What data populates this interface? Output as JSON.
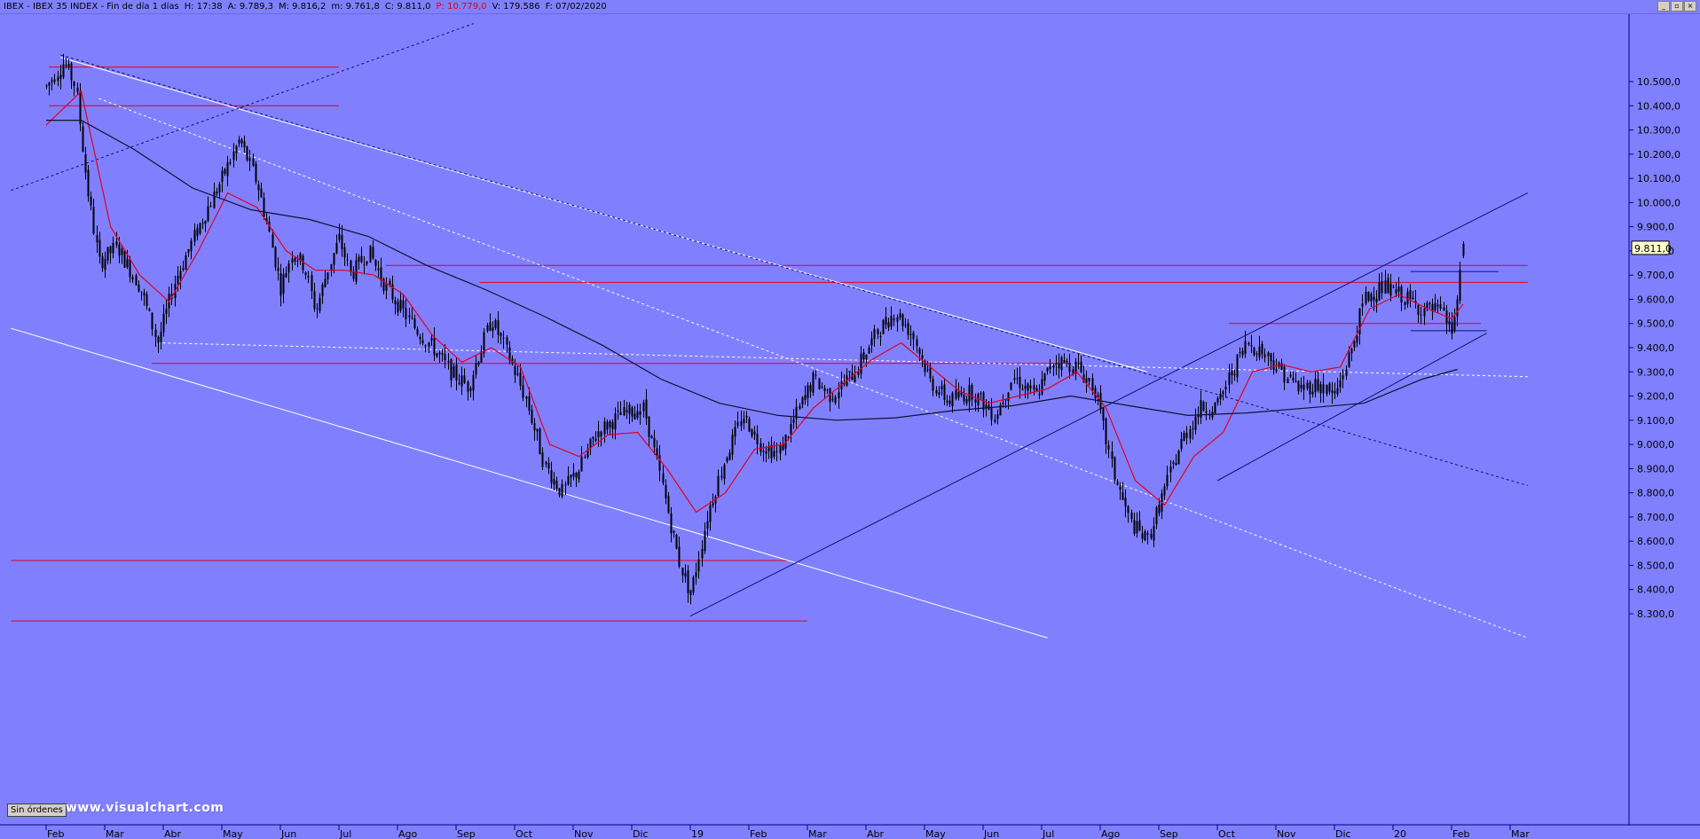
{
  "window": {
    "title_fields": [
      {
        "text": "IBEX - IBEX 35 INDEX - Fin de día 1 días",
        "color": "#000000"
      },
      {
        "text": "H: 17:38",
        "color": "#000000"
      },
      {
        "text": "A: 9.789,3",
        "color": "#000000"
      },
      {
        "text": "M: 9.816,2",
        "color": "#000000"
      },
      {
        "text": "m: 9.761,8",
        "color": "#000000"
      },
      {
        "text": "C: 9.811,0",
        "color": "#000000"
      },
      {
        "text": "P: 10.779,0",
        "color": "#e00000"
      },
      {
        "text": "V: 179.586",
        "color": "#000000"
      },
      {
        "text": "F: 07/02/2020",
        "color": "#000000"
      }
    ],
    "buttons": [
      "minimize-icon",
      "maximize-icon",
      "close-icon"
    ]
  },
  "footer": {
    "orders_button": "Sin órdenes",
    "watermark": "www.visualchart.com"
  },
  "chart_data": {
    "type": "candlestick",
    "instrument": "IBEX 35 INDEX",
    "last_price_label": "9.811,0",
    "y_ticks": [
      "10.500,0",
      "10.400,0",
      "10.300,0",
      "10.200,0",
      "10.100,0",
      "10.000,0",
      "9.900,0",
      "9.800,0",
      "9.700,0",
      "9.600,0",
      "9.500,0",
      "9.400,0",
      "9.300,0",
      "9.200,0",
      "9.100,0",
      "9.000,0",
      "8.900,0",
      "8.800,0",
      "8.700,0",
      "8.600,0",
      "8.500,0",
      "8.400,0",
      "8.300,0"
    ],
    "y_tick_values": [
      10500,
      10400,
      10300,
      10200,
      10100,
      10000,
      9900,
      9800,
      9700,
      9600,
      9500,
      9400,
      9300,
      9200,
      9100,
      9000,
      8900,
      8800,
      8700,
      8600,
      8500,
      8400,
      8300
    ],
    "x_labels": [
      "Feb",
      "Mar",
      "Abr",
      "May",
      "Jun",
      "Jul",
      "Ago",
      "Sep",
      "Oct",
      "Nov",
      "Dic",
      "19",
      "Feb",
      "Mar",
      "Abr",
      "May",
      "Jun",
      "Jul",
      "Ago",
      "Sep",
      "Oct",
      "Nov",
      "Dic",
      "20",
      "Feb",
      "Mar"
    ],
    "x_label_index": [
      0,
      1,
      2,
      3,
      4,
      5,
      6,
      7,
      8,
      9,
      10,
      11,
      12,
      13,
      14,
      15,
      16,
      17,
      18,
      19,
      20,
      21,
      22,
      23,
      24,
      25
    ],
    "price_path": [
      [
        0,
        10480
      ],
      [
        0.3,
        10580
      ],
      [
        0.5,
        10480
      ],
      [
        0.7,
        10060
      ],
      [
        0.9,
        9750
      ],
      [
        1.2,
        9820
      ],
      [
        1.6,
        9650
      ],
      [
        1.9,
        9420
      ],
      [
        2.2,
        9680
      ],
      [
        2.6,
        9900
      ],
      [
        3.0,
        10100
      ],
      [
        3.3,
        10260
      ],
      [
        3.6,
        10080
      ],
      [
        3.8,
        9880
      ],
      [
        4.0,
        9650
      ],
      [
        4.2,
        9800
      ],
      [
        4.4,
        9740
      ],
      [
        4.6,
        9550
      ],
      [
        4.8,
        9720
      ],
      [
        5.0,
        9850
      ],
      [
        5.2,
        9700
      ],
      [
        5.5,
        9800
      ],
      [
        5.8,
        9650
      ],
      [
        6.0,
        9580
      ],
      [
        6.3,
        9480
      ],
      [
        6.6,
        9400
      ],
      [
        6.9,
        9300
      ],
      [
        7.2,
        9240
      ],
      [
        7.6,
        9520
      ],
      [
        7.9,
        9360
      ],
      [
        8.2,
        9180
      ],
      [
        8.5,
        8920
      ],
      [
        8.8,
        8800
      ],
      [
        9.1,
        8900
      ],
      [
        9.4,
        9050
      ],
      [
        9.8,
        9120
      ],
      [
        10.2,
        9150
      ],
      [
        10.5,
        8850
      ],
      [
        10.8,
        8520
      ],
      [
        11.0,
        8380
      ],
      [
        11.3,
        8720
      ],
      [
        11.6,
        8950
      ],
      [
        11.9,
        9120
      ],
      [
        12.2,
        9000
      ],
      [
        12.5,
        8960
      ],
      [
        12.8,
        9120
      ],
      [
        13.1,
        9270
      ],
      [
        13.4,
        9200
      ],
      [
        13.8,
        9300
      ],
      [
        14.2,
        9470
      ],
      [
        14.5,
        9550
      ],
      [
        14.8,
        9450
      ],
      [
        15.1,
        9260
      ],
      [
        15.4,
        9180
      ],
      [
        15.8,
        9220
      ],
      [
        16.2,
        9120
      ],
      [
        16.5,
        9280
      ],
      [
        16.9,
        9200
      ],
      [
        17.2,
        9350
      ],
      [
        17.6,
        9320
      ],
      [
        17.9,
        9230
      ],
      [
        18.2,
        8900
      ],
      [
        18.5,
        8680
      ],
      [
        18.8,
        8600
      ],
      [
        19.1,
        8820
      ],
      [
        19.4,
        9020
      ],
      [
        19.7,
        9150
      ],
      [
        20.0,
        9160
      ],
      [
        20.2,
        9280
      ],
      [
        20.5,
        9420
      ],
      [
        20.8,
        9380
      ],
      [
        21.1,
        9300
      ],
      [
        21.4,
        9230
      ],
      [
        21.7,
        9250
      ],
      [
        22.0,
        9200
      ],
      [
        22.3,
        9400
      ],
      [
        22.5,
        9600
      ],
      [
        22.8,
        9650
      ],
      [
        23.1,
        9620
      ],
      [
        23.5,
        9560
      ],
      [
        23.8,
        9550
      ],
      [
        24.0,
        9470
      ],
      [
        24.1,
        9600
      ],
      [
        24.2,
        9810
      ]
    ],
    "moving_averages": [
      {
        "color": "#e00020",
        "points": [
          [
            0,
            10320
          ],
          [
            0.6,
            10460
          ],
          [
            1.1,
            9900
          ],
          [
            1.6,
            9700
          ],
          [
            2.1,
            9590
          ],
          [
            2.6,
            9800
          ],
          [
            3.1,
            10040
          ],
          [
            3.6,
            9980
          ],
          [
            4.1,
            9800
          ],
          [
            4.6,
            9720
          ],
          [
            5.1,
            9720
          ],
          [
            5.6,
            9700
          ],
          [
            6.1,
            9620
          ],
          [
            6.6,
            9450
          ],
          [
            7.1,
            9340
          ],
          [
            7.6,
            9400
          ],
          [
            8.1,
            9320
          ],
          [
            8.6,
            9000
          ],
          [
            9.1,
            8950
          ],
          [
            9.6,
            9040
          ],
          [
            10.1,
            9050
          ],
          [
            10.6,
            8900
          ],
          [
            11.1,
            8720
          ],
          [
            11.6,
            8800
          ],
          [
            12.1,
            8980
          ],
          [
            12.6,
            9000
          ],
          [
            13.1,
            9150
          ],
          [
            13.6,
            9250
          ],
          [
            14.1,
            9350
          ],
          [
            14.6,
            9420
          ],
          [
            15.1,
            9320
          ],
          [
            15.6,
            9220
          ],
          [
            16.1,
            9170
          ],
          [
            16.6,
            9200
          ],
          [
            17.1,
            9230
          ],
          [
            17.6,
            9300
          ],
          [
            18.1,
            9150
          ],
          [
            18.6,
            8850
          ],
          [
            19.1,
            8750
          ],
          [
            19.6,
            8950
          ],
          [
            20.1,
            9050
          ],
          [
            20.6,
            9300
          ],
          [
            21.1,
            9330
          ],
          [
            21.6,
            9300
          ],
          [
            22.1,
            9320
          ],
          [
            22.6,
            9560
          ],
          [
            23.1,
            9620
          ],
          [
            23.6,
            9560
          ],
          [
            24.0,
            9520
          ],
          [
            24.2,
            9580
          ]
        ]
      },
      {
        "color": "#101030",
        "points": [
          [
            0,
            10340
          ],
          [
            0.6,
            10340
          ],
          [
            1.5,
            10220
          ],
          [
            2.5,
            10060
          ],
          [
            3.5,
            9970
          ],
          [
            4.5,
            9930
          ],
          [
            5.5,
            9860
          ],
          [
            6.5,
            9740
          ],
          [
            7.5,
            9640
          ],
          [
            8.5,
            9530
          ],
          [
            9.5,
            9410
          ],
          [
            10.5,
            9270
          ],
          [
            11.5,
            9170
          ],
          [
            12.5,
            9120
          ],
          [
            13.5,
            9100
          ],
          [
            14.5,
            9110
          ],
          [
            15.5,
            9140
          ],
          [
            16.5,
            9160
          ],
          [
            17.5,
            9200
          ],
          [
            18.5,
            9160
          ],
          [
            19.5,
            9120
          ],
          [
            20.5,
            9130
          ],
          [
            21.5,
            9150
          ],
          [
            22.5,
            9170
          ],
          [
            23.5,
            9270
          ],
          [
            24.1,
            9310
          ]
        ]
      }
    ],
    "trend_lines": [
      {
        "color": "#ffffff",
        "style": "solid",
        "p1": [
          0.25,
          10600
        ],
        "p2": [
          18.8,
          9300
        ]
      },
      {
        "color": "#ffffff",
        "style": "solid",
        "p1": [
          -0.6,
          9480
        ],
        "p2": [
          17.1,
          8200
        ]
      },
      {
        "color": "#101070",
        "style": "dashed",
        "p1": [
          0.25,
          10610
        ],
        "p2": [
          25.3,
          8830
        ]
      },
      {
        "color": "#ffffff",
        "style": "dashed",
        "p1": [
          0.9,
          10430
        ],
        "p2": [
          25.3,
          8200
        ]
      },
      {
        "color": "#101070",
        "style": "dashed",
        "p1": [
          -0.6,
          10050
        ],
        "p2": [
          7.3,
          10740
        ]
      },
      {
        "color": "#101070",
        "style": "solid",
        "p1": [
          11.0,
          8290
        ],
        "p2": [
          25.3,
          10040
        ]
      },
      {
        "color": "#101070",
        "style": "solid",
        "p1": [
          20.0,
          8850
        ],
        "p2": [
          24.6,
          9460
        ]
      },
      {
        "color": "#ffffff",
        "style": "dashed",
        "p1": [
          1.9,
          9420
        ],
        "p2": [
          25.3,
          9280
        ]
      }
    ],
    "horizontal_levels": [
      {
        "color": "#e00020",
        "value": 10560,
        "x1": 0.05,
        "x2": 5.0
      },
      {
        "color": "#e00020",
        "value": 10400,
        "x1": 0.05,
        "x2": 5.0
      },
      {
        "color": "#e00020",
        "value": 9740,
        "x1": 5.8,
        "x2": 25.3
      },
      {
        "color": "#e00020",
        "value": 9670,
        "x1": 7.4,
        "x2": 25.3
      },
      {
        "color": "#e00020",
        "value": 9500,
        "x1": 20.2,
        "x2": 24.5
      },
      {
        "color": "#e00020",
        "value": 9335,
        "x1": 1.8,
        "x2": 17.5
      },
      {
        "color": "#e00020",
        "value": 8520,
        "x1": -0.6,
        "x2": 12.7
      },
      {
        "color": "#e00020",
        "value": 8270,
        "x1": -0.6,
        "x2": 13.0
      },
      {
        "color": "#101070",
        "value": 9715,
        "x1": 23.3,
        "x2": 24.8
      },
      {
        "color": "#101070",
        "value": 9470,
        "x1": 23.3,
        "x2": 24.6
      }
    ]
  }
}
